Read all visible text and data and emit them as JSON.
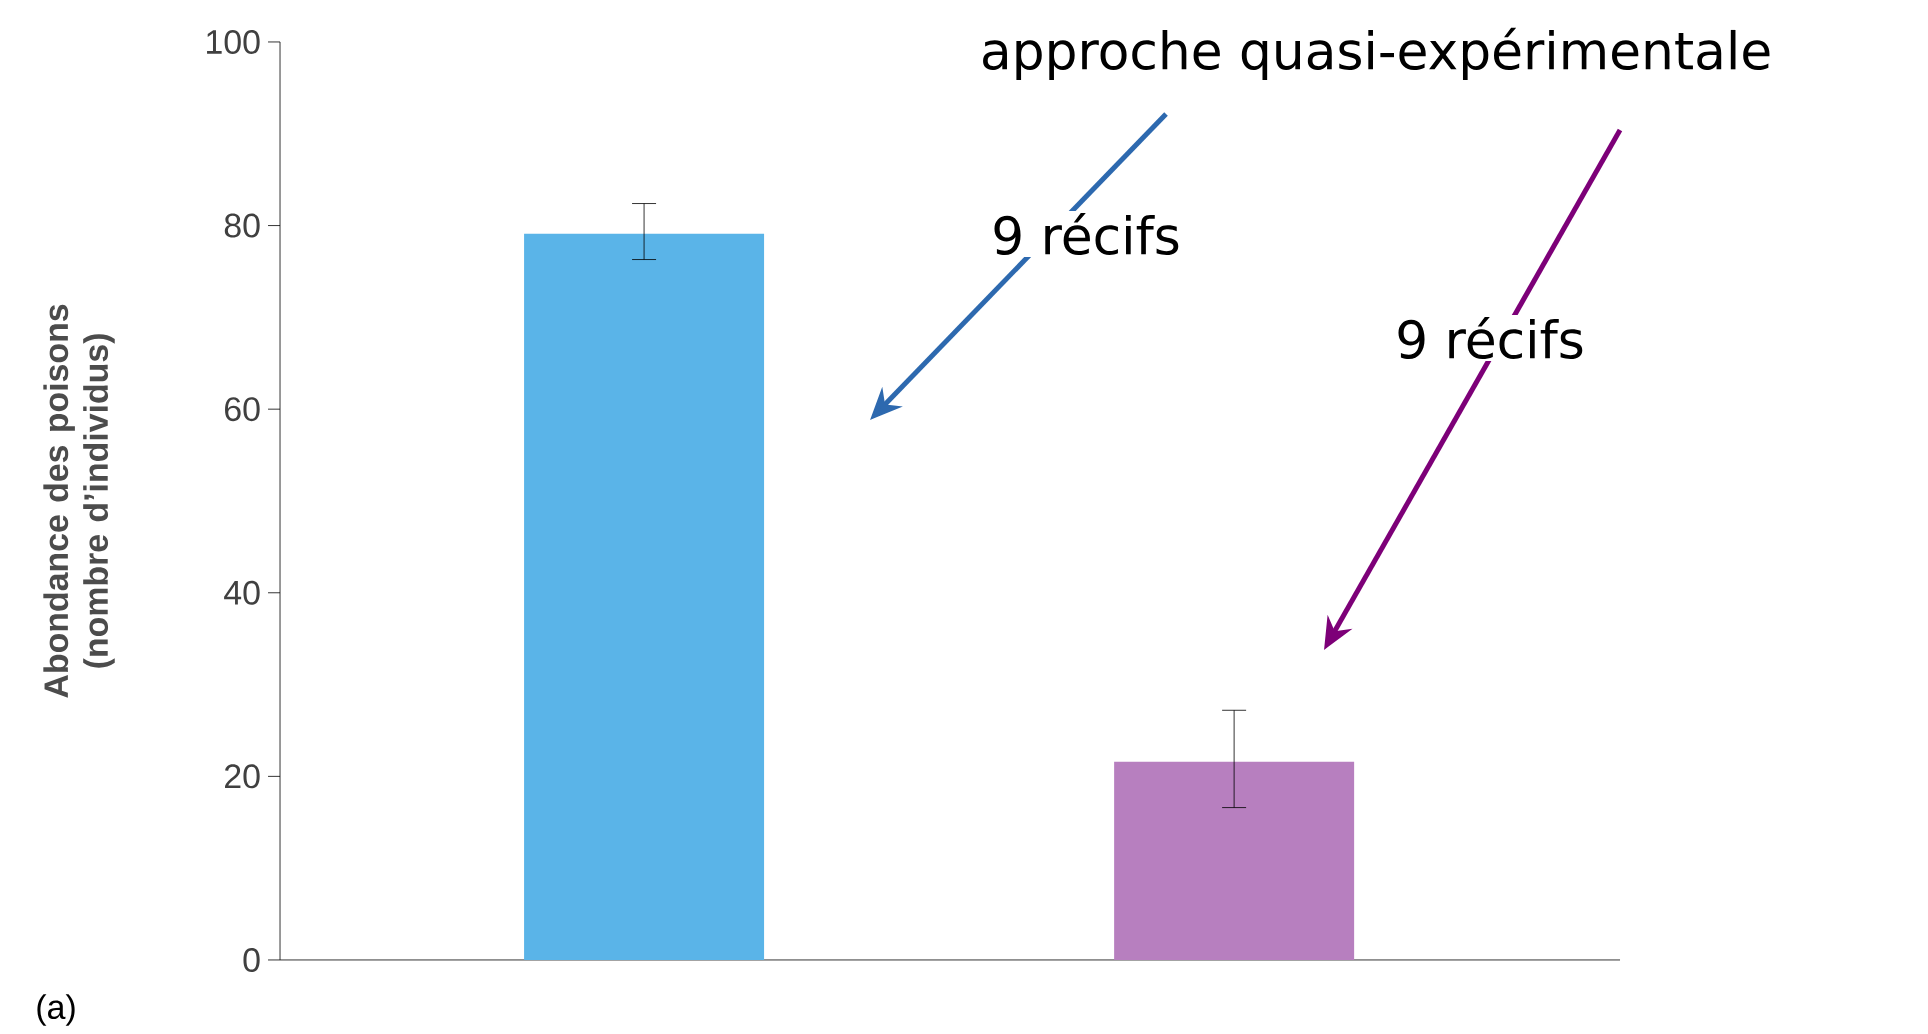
{
  "chart_data": {
    "type": "bar",
    "ylabel": "Abondance des poisons (nombre d’individus)",
    "categories": [
      null,
      null
    ],
    "values": [
      79.1,
      21.6
    ],
    "colors": [
      "#5ab4e8",
      "#b77fbf"
    ],
    "errors": [
      [
        76.3,
        82.4
      ],
      [
        16.6,
        27.2
      ]
    ],
    "ylim": [
      0,
      100
    ],
    "yticks": [
      0,
      20,
      40,
      60,
      80,
      100
    ],
    "annotations": [
      "approche quasi-expérimentale",
      "9 récifs",
      "9 récifs",
      "(a)"
    ]
  }
}
